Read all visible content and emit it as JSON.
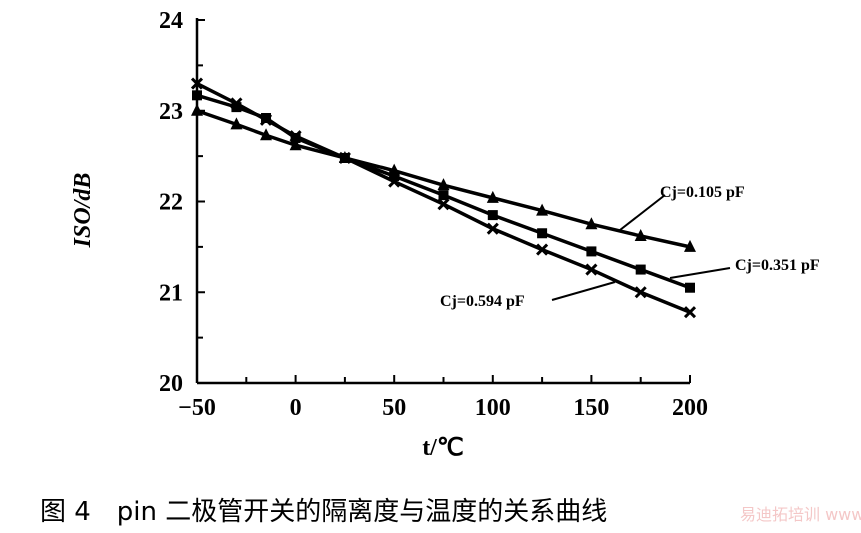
{
  "chart_data": {
    "type": "line",
    "title": "",
    "xlabel": "t/℃",
    "ylabel": "ISO/dB",
    "xlim": [
      -50,
      200
    ],
    "ylim": [
      20,
      24
    ],
    "xticks": [
      "−50",
      "0",
      "50",
      "100",
      "150",
      "200"
    ],
    "yticks": [
      "20",
      "21",
      "22",
      "23",
      "24"
    ],
    "grid": false,
    "x": [
      -50,
      -30,
      -15,
      0,
      25,
      50,
      75,
      100,
      125,
      150,
      175,
      200
    ],
    "series": [
      {
        "name": "Cj=0.105 pF",
        "marker": "triangle",
        "values": [
          23.0,
          22.85,
          22.73,
          22.62,
          22.48,
          22.34,
          22.18,
          22.04,
          21.9,
          21.75,
          21.62,
          21.5
        ]
      },
      {
        "name": "Cj=0.351 pF",
        "marker": "square",
        "values": [
          23.17,
          23.04,
          22.92,
          22.7,
          22.48,
          22.28,
          22.07,
          21.85,
          21.65,
          21.45,
          21.25,
          21.05
        ]
      },
      {
        "name": "Cj=0.594 pF",
        "marker": "x",
        "values": [
          23.3,
          23.08,
          22.9,
          22.72,
          22.48,
          22.22,
          21.97,
          21.7,
          21.47,
          21.25,
          21.0,
          20.78
        ]
      }
    ]
  },
  "caption": "图 4　pin 二极管开关的隔离度与温度的关系曲线",
  "watermark": "易迪拓培训 www.edatop.com"
}
